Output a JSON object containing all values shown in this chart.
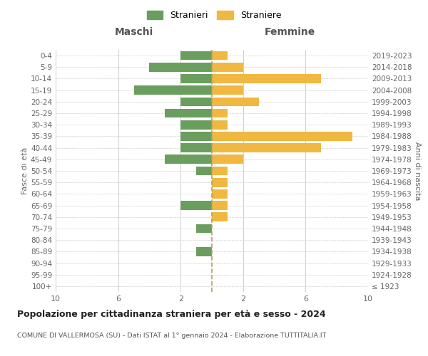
{
  "age_groups": [
    "100+",
    "95-99",
    "90-94",
    "85-89",
    "80-84",
    "75-79",
    "70-74",
    "65-69",
    "60-64",
    "55-59",
    "50-54",
    "45-49",
    "40-44",
    "35-39",
    "30-34",
    "25-29",
    "20-24",
    "15-19",
    "10-14",
    "5-9",
    "0-4"
  ],
  "birth_years": [
    "≤ 1923",
    "1924-1928",
    "1929-1933",
    "1934-1938",
    "1939-1943",
    "1944-1948",
    "1949-1953",
    "1954-1958",
    "1959-1963",
    "1964-1968",
    "1969-1973",
    "1974-1978",
    "1979-1983",
    "1984-1988",
    "1989-1993",
    "1994-1998",
    "1999-2003",
    "2004-2008",
    "2009-2013",
    "2014-2018",
    "2019-2023"
  ],
  "maschi": [
    0,
    0,
    0,
    1,
    0,
    1,
    0,
    2,
    0,
    0,
    1,
    3,
    2,
    2,
    2,
    3,
    2,
    5,
    2,
    4,
    2
  ],
  "femmine": [
    0,
    0,
    0,
    0,
    0,
    0,
    1,
    1,
    1,
    1,
    1,
    2,
    7,
    9,
    1,
    1,
    3,
    2,
    7,
    2,
    1
  ],
  "maschi_color": "#6a9e5e",
  "femmine_color": "#f0b840",
  "bg_color": "#ffffff",
  "grid_color": "#d0d0d0",
  "centerline_color": "#b0a060",
  "title": "Popolazione per cittadinanza straniera per età e sesso - 2024",
  "subtitle": "COMUNE DI VALLERMOSA (SU) - Dati ISTAT al 1° gennaio 2024 - Elaborazione TUTTITALIA.IT",
  "xlabel_left": "Maschi",
  "xlabel_right": "Femmine",
  "ylabel_left": "Fasce di età",
  "ylabel_right": "Anni di nascita",
  "legend_maschi": "Stranieri",
  "legend_femmine": "Straniere",
  "xlim": 10
}
